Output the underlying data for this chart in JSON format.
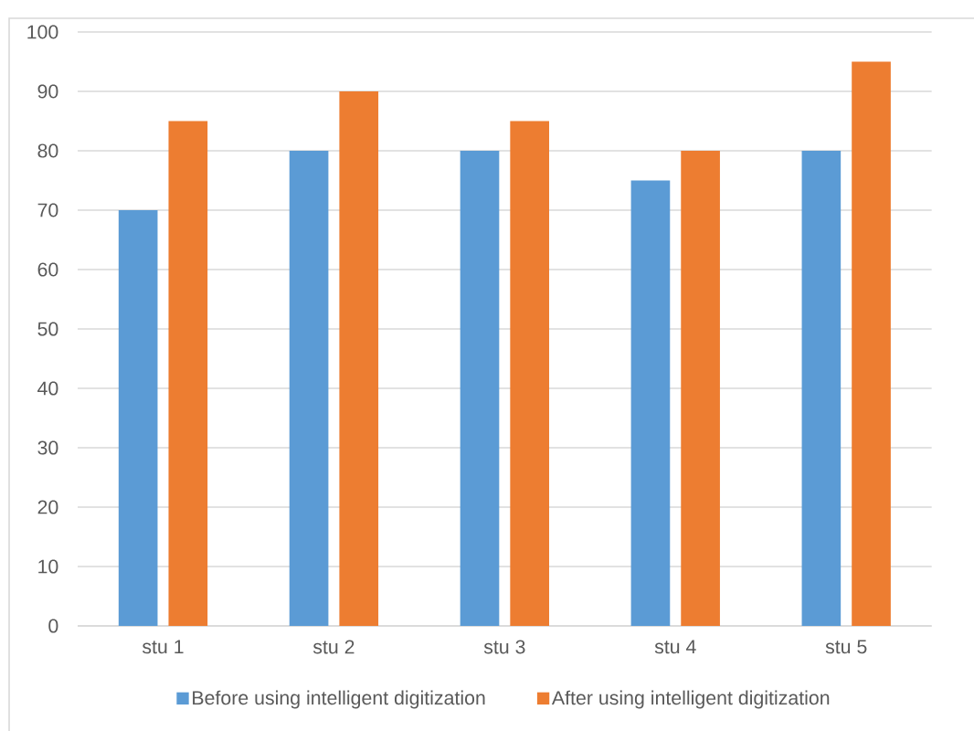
{
  "chart_data": {
    "type": "bar",
    "categories": [
      "stu 1",
      "stu 2",
      "stu 3",
      "stu 4",
      "stu 5"
    ],
    "series": [
      {
        "name": "Before using intelligent digitization",
        "color": "#5b9bd5",
        "values": [
          70,
          80,
          80,
          75,
          80
        ]
      },
      {
        "name": "After using intelligent digitization",
        "color": "#ed7d31",
        "values": [
          85,
          90,
          85,
          80,
          95
        ]
      }
    ],
    "ylim": [
      0,
      100
    ],
    "yticks": [
      0,
      10,
      20,
      30,
      40,
      50,
      60,
      70,
      80,
      90,
      100
    ],
    "grid": "y",
    "legend": "bottom"
  }
}
